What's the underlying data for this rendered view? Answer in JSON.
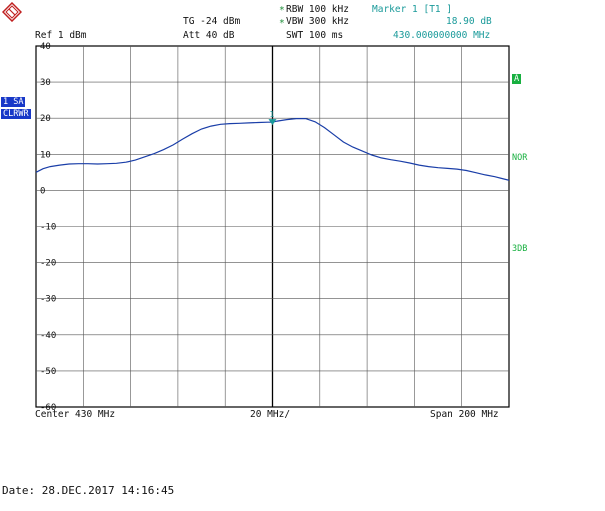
{
  "header": {
    "ref": "Ref  1 dBm",
    "tg": "TG   -24 dBm",
    "att": "Att   40 dB",
    "rbw": "RBW 100 kHz",
    "vbw": "VBW 300 kHz",
    "swt": "SWT 100 ms",
    "marker_title": "Marker 1 [T1 ]",
    "marker_level": "18.90 dB",
    "marker_freq": "430.000000000 MHz",
    "star": "*"
  },
  "side": {
    "sa": "1 SA",
    "clrwr": "CLRWR",
    "a": "A",
    "nor": "NOR",
    "three_db": "3DB"
  },
  "footer": {
    "center": "Center 430 MHz",
    "div": "20 MHz/",
    "span": "Span 200 MHz",
    "date": "Date: 28.DEC.2017   14:16:45"
  },
  "chart_data": {
    "type": "line",
    "x_unit": "MHz",
    "y_unit": "dB",
    "xlim": [
      330,
      530
    ],
    "ylim": [
      -60,
      40
    ],
    "grid": true,
    "yticks": [
      "40",
      "30",
      "20",
      "10",
      "0",
      "-10",
      "-20",
      "-30",
      "-40",
      "-50",
      "-60"
    ],
    "series": [
      {
        "x": [
          330,
          333,
          336,
          340,
          344,
          348,
          352,
          356,
          360,
          364,
          368,
          372,
          376,
          380,
          384,
          388,
          392,
          396,
          400,
          404,
          408,
          412,
          416,
          420,
          424,
          428,
          430,
          432,
          436,
          440,
          444,
          448,
          452,
          456,
          460,
          464,
          468,
          472,
          476,
          480,
          484,
          488,
          492,
          496,
          500,
          504,
          508,
          512,
          516,
          520,
          524,
          527,
          530
        ],
        "values": [
          5,
          6,
          6.6,
          7,
          7.3,
          7.4,
          7.4,
          7.3,
          7.4,
          7.5,
          7.8,
          8.4,
          9.3,
          10.2,
          11.3,
          12.6,
          14.2,
          15.7,
          17,
          17.8,
          18.3,
          18.5,
          18.6,
          18.7,
          18.8,
          18.9,
          18.9,
          19.2,
          19.6,
          19.9,
          19.9,
          19,
          17.4,
          15.4,
          13.4,
          12,
          10.9,
          9.8,
          9,
          8.5,
          8.1,
          7.6,
          7,
          6.6,
          6.3,
          6.1,
          5.9,
          5.5,
          4.9,
          4.3,
          3.8,
          3.3,
          2.8
        ]
      }
    ],
    "marker": {
      "x": 430,
      "y": 18.9,
      "label": "1"
    }
  }
}
